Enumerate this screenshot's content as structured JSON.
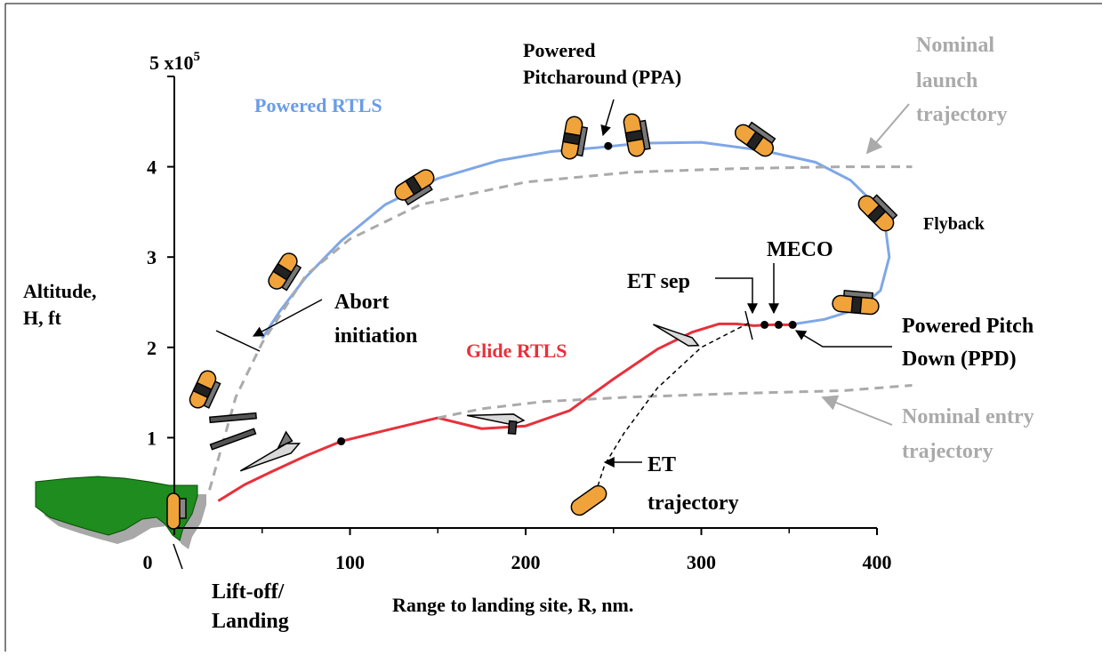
{
  "chart_data": {
    "type": "line",
    "title": "",
    "xlabel": "Range to landing site, R, nm.",
    "ylabel_lines": [
      "Altitude,",
      "H, ft"
    ],
    "y_exponent_label": "5 x10",
    "y_exponent_power": "5",
    "xlim": [
      0,
      400
    ],
    "ylim": [
      0,
      5
    ],
    "x_ticks": [
      "0",
      "100",
      "200",
      "300",
      "400"
    ],
    "y_ticks": [
      "1",
      "2",
      "3",
      "4"
    ],
    "grid": false,
    "colors": {
      "powered": "#7fa7e6",
      "glide": "#e8303a",
      "nominal": "#aaaaaa",
      "et": "#000000",
      "land": "#1e8c1e",
      "shadow": "#a8a8a8"
    },
    "series": [
      {
        "name": "Powered RTLS",
        "color": "#7fa7e6",
        "x": [
          50,
          60,
          75,
          95,
          120,
          150,
          185,
          215,
          240,
          265,
          300,
          335,
          365,
          385,
          398,
          405,
          407,
          402,
          390,
          370,
          350
        ],
        "y": [
          2.1,
          2.4,
          2.78,
          3.18,
          3.58,
          3.87,
          4.07,
          4.17,
          4.21,
          4.26,
          4.27,
          4.18,
          4.05,
          3.85,
          3.6,
          3.3,
          3.0,
          2.63,
          2.43,
          2.31,
          2.25
        ]
      },
      {
        "name": "Glide RTLS",
        "color": "#e8303a",
        "x": [
          25,
          40,
          55,
          75,
          95,
          120,
          150,
          175,
          200,
          225,
          250,
          275,
          295,
          310,
          320,
          330,
          340,
          350
        ],
        "y": [
          0.3,
          0.48,
          0.62,
          0.8,
          0.96,
          1.08,
          1.22,
          1.1,
          1.13,
          1.3,
          1.65,
          1.98,
          2.17,
          2.26,
          2.26,
          2.24,
          2.25,
          2.25
        ]
      },
      {
        "name": "Nominal launch trajectory",
        "color": "#aaaaaa",
        "dashed": true,
        "x": [
          20,
          35,
          50,
          75,
          100,
          140,
          200,
          260,
          320,
          380,
          420
        ],
        "y": [
          0.42,
          1.45,
          2.05,
          2.8,
          3.2,
          3.58,
          3.83,
          3.94,
          3.98,
          4.0,
          4.0
        ]
      },
      {
        "name": "Nominal entry trajectory",
        "color": "#aaaaaa",
        "dashed": true,
        "x": [
          150,
          175,
          210,
          260,
          320,
          380,
          420
        ],
        "y": [
          1.22,
          1.32,
          1.4,
          1.45,
          1.49,
          1.52,
          1.58
        ]
      },
      {
        "name": "ET trajectory",
        "color": "#000000",
        "dashed": true,
        "x": [
          327,
          300,
          275,
          256,
          245,
          240
        ],
        "y": [
          2.27,
          2.0,
          1.55,
          1.05,
          0.7,
          0.4
        ]
      }
    ],
    "markers": [
      {
        "x": 247,
        "y": 4.23
      },
      {
        "x": 95,
        "y": 0.96
      },
      {
        "x": 336,
        "y": 2.25
      },
      {
        "x": 344,
        "y": 2.25
      },
      {
        "x": 352,
        "y": 2.25
      }
    ],
    "annotations": {
      "powered_label": "Powered RTLS",
      "glide_label": "Glide RTLS",
      "nominal_launch": [
        "Nominal",
        "launch",
        "trajectory"
      ],
      "nominal_entry": [
        "Nominal entry",
        "trajectory"
      ],
      "ppa": [
        "Powered",
        "Pitcharound (PPA)"
      ],
      "flyback": "Flyback",
      "meco": "MECO",
      "et_sep": "ET sep",
      "ppd": [
        "Powered Pitch",
        "Down (PPD)"
      ],
      "abort": [
        "Abort",
        "initiation"
      ],
      "et_trajectory": [
        "ET",
        "trajectory"
      ],
      "liftoff": [
        "Lift-off/",
        "Landing"
      ]
    }
  }
}
